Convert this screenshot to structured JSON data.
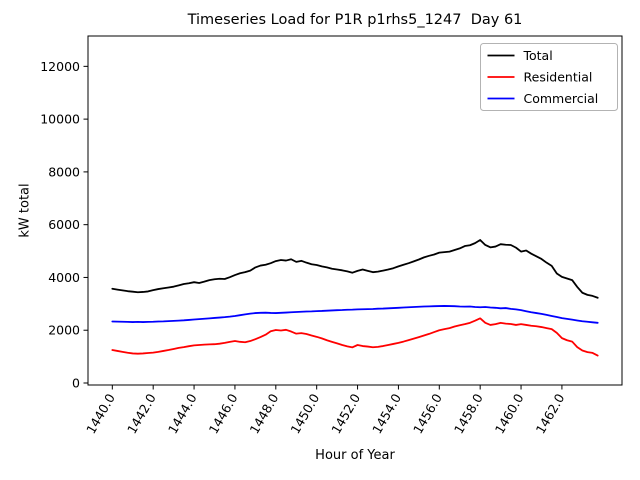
{
  "title": "Timeseries Load for P1R p1rhs5_1247  Day 61",
  "axes": {
    "xlabel": "Hour of Year",
    "ylabel": "kW total"
  },
  "legend": {
    "position": "upper right",
    "items": [
      {
        "label": "Total",
        "color": "#000000"
      },
      {
        "label": "Residential",
        "color": "#ff0000"
      },
      {
        "label": "Commercial",
        "color": "#0000ff"
      }
    ]
  },
  "chart_data": {
    "type": "line",
    "title": "Timeseries Load for P1R p1rhs5_1247  Day 61",
    "xlabel": "Hour of Year",
    "ylabel": "kW total",
    "xlim": [
      1438.81,
      1464.94
    ],
    "ylim": [
      -76,
      13150
    ],
    "grid": false,
    "legend_position": "upper right",
    "xticks": {
      "values": [
        1440,
        1442,
        1444,
        1446,
        1448,
        1450,
        1452,
        1454,
        1456,
        1458,
        1460,
        1462
      ],
      "labels": [
        "1440.0",
        "1442.0",
        "1444.0",
        "1446.0",
        "1448.0",
        "1450.0",
        "1452.0",
        "1454.0",
        "1456.0",
        "1458.0",
        "1460.0",
        "1462.0"
      ],
      "rotation": -60
    },
    "yticks": {
      "values": [
        0,
        2000,
        4000,
        6000,
        8000,
        10000,
        12000
      ],
      "labels": [
        "0",
        "2000",
        "4000",
        "6000",
        "8000",
        "10000",
        "12000"
      ]
    },
    "x": [
      1440.0,
      1440.25,
      1440.5,
      1440.75,
      1441.0,
      1441.25,
      1441.5,
      1441.75,
      1442.0,
      1442.25,
      1442.5,
      1442.75,
      1443.0,
      1443.25,
      1443.5,
      1443.75,
      1444.0,
      1444.25,
      1444.5,
      1444.75,
      1445.0,
      1445.25,
      1445.5,
      1445.75,
      1446.0,
      1446.25,
      1446.5,
      1446.75,
      1447.0,
      1447.25,
      1447.5,
      1447.75,
      1448.0,
      1448.25,
      1448.5,
      1448.75,
      1449.0,
      1449.25,
      1449.5,
      1449.75,
      1450.0,
      1450.25,
      1450.5,
      1450.75,
      1451.0,
      1451.25,
      1451.5,
      1451.75,
      1452.0,
      1452.25,
      1452.5,
      1452.75,
      1453.0,
      1453.25,
      1453.5,
      1453.75,
      1454.0,
      1454.25,
      1454.5,
      1454.75,
      1455.0,
      1455.25,
      1455.5,
      1455.75,
      1456.0,
      1456.25,
      1456.5,
      1456.75,
      1457.0,
      1457.25,
      1457.5,
      1457.75,
      1458.0,
      1458.25,
      1458.5,
      1458.75,
      1459.0,
      1459.25,
      1459.5,
      1459.75,
      1460.0,
      1460.25,
      1460.5,
      1460.75,
      1461.0,
      1461.25,
      1461.5,
      1461.75,
      1462.0,
      1462.25,
      1462.5,
      1462.75,
      1463.0,
      1463.25,
      1463.5,
      1463.75
    ],
    "series": [
      {
        "name": "Total",
        "color": "#000000",
        "values": [
          3570,
          3540,
          3510,
          3480,
          3460,
          3440,
          3450,
          3470,
          3520,
          3560,
          3590,
          3620,
          3650,
          3700,
          3750,
          3780,
          3820,
          3790,
          3840,
          3900,
          3930,
          3950,
          3940,
          4010,
          4090,
          4160,
          4200,
          4260,
          4380,
          4450,
          4480,
          4540,
          4620,
          4660,
          4640,
          4690,
          4590,
          4630,
          4560,
          4500,
          4470,
          4420,
          4380,
          4330,
          4300,
          4270,
          4230,
          4180,
          4250,
          4300,
          4250,
          4200,
          4220,
          4260,
          4300,
          4350,
          4420,
          4480,
          4540,
          4610,
          4680,
          4760,
          4820,
          4870,
          4940,
          4960,
          4980,
          5040,
          5100,
          5190,
          5220,
          5300,
          5420,
          5230,
          5140,
          5170,
          5260,
          5240,
          5230,
          5130,
          4980,
          5020,
          4900,
          4800,
          4700,
          4560,
          4440,
          4150,
          4020,
          3960,
          3900,
          3640,
          3420,
          3340,
          3300,
          3230
        ]
      },
      {
        "name": "Residential",
        "color": "#ff0000",
        "values": [
          1250,
          1215,
          1180,
          1145,
          1120,
          1110,
          1120,
          1135,
          1150,
          1180,
          1215,
          1250,
          1290,
          1330,
          1360,
          1395,
          1425,
          1440,
          1455,
          1465,
          1470,
          1490,
          1520,
          1560,
          1590,
          1560,
          1545,
          1590,
          1660,
          1740,
          1830,
          1960,
          2010,
          1990,
          2015,
          1950,
          1870,
          1890,
          1855,
          1800,
          1750,
          1690,
          1620,
          1560,
          1500,
          1440,
          1390,
          1350,
          1440,
          1400,
          1380,
          1355,
          1370,
          1400,
          1440,
          1480,
          1520,
          1570,
          1625,
          1680,
          1740,
          1800,
          1860,
          1930,
          2000,
          2040,
          2080,
          2140,
          2190,
          2230,
          2280,
          2360,
          2450,
          2280,
          2200,
          2230,
          2280,
          2250,
          2235,
          2200,
          2230,
          2200,
          2170,
          2150,
          2120,
          2080,
          2040,
          1900,
          1700,
          1620,
          1570,
          1360,
          1230,
          1170,
          1140,
          1040
        ]
      },
      {
        "name": "Commercial",
        "color": "#0000ff",
        "values": [
          2330,
          2325,
          2320,
          2315,
          2310,
          2315,
          2310,
          2315,
          2320,
          2330,
          2335,
          2345,
          2355,
          2365,
          2375,
          2390,
          2405,
          2420,
          2435,
          2450,
          2465,
          2480,
          2495,
          2515,
          2540,
          2570,
          2600,
          2630,
          2650,
          2660,
          2665,
          2655,
          2650,
          2660,
          2670,
          2680,
          2690,
          2700,
          2710,
          2715,
          2725,
          2730,
          2740,
          2750,
          2760,
          2765,
          2775,
          2780,
          2790,
          2795,
          2800,
          2805,
          2815,
          2820,
          2830,
          2840,
          2850,
          2860,
          2870,
          2880,
          2890,
          2900,
          2905,
          2910,
          2915,
          2920,
          2915,
          2910,
          2900,
          2895,
          2900,
          2880,
          2870,
          2880,
          2860,
          2850,
          2830,
          2840,
          2810,
          2790,
          2760,
          2720,
          2680,
          2650,
          2620,
          2580,
          2540,
          2500,
          2460,
          2430,
          2400,
          2370,
          2340,
          2320,
          2300,
          2280
        ]
      }
    ]
  }
}
